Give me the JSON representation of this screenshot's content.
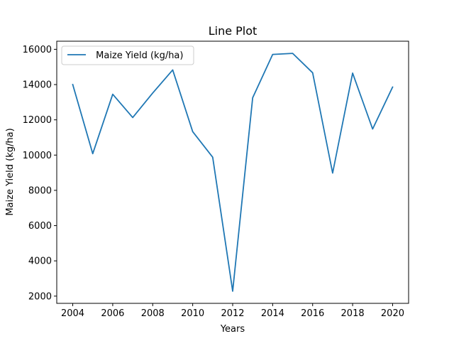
{
  "chart_data": {
    "type": "line",
    "title": "Line Plot",
    "xlabel": "Years",
    "ylabel": "Maize Yield (kg/ha)",
    "x": [
      2004,
      2005,
      2006,
      2007,
      2008,
      2009,
      2010,
      2011,
      2012,
      2013,
      2014,
      2015,
      2016,
      2017,
      2018,
      2019,
      2020
    ],
    "series": [
      {
        "name": " Maize Yield (kg/ha)",
        "color": "#1f77b4",
        "values": [
          14000,
          10080,
          13450,
          12130,
          13520,
          14830,
          11330,
          9880,
          2280,
          13250,
          15710,
          15770,
          14670,
          8980,
          14650,
          11480,
          13860
        ]
      }
    ],
    "xlim": [
      2003.2,
      2020.8
    ],
    "ylim": [
      1590,
      16460
    ],
    "xticks": [
      2004,
      2006,
      2008,
      2010,
      2012,
      2014,
      2016,
      2018,
      2020
    ],
    "yticks": [
      2000,
      4000,
      6000,
      8000,
      10000,
      12000,
      14000,
      16000
    ],
    "grid": false,
    "legend_position": "upper-left"
  }
}
